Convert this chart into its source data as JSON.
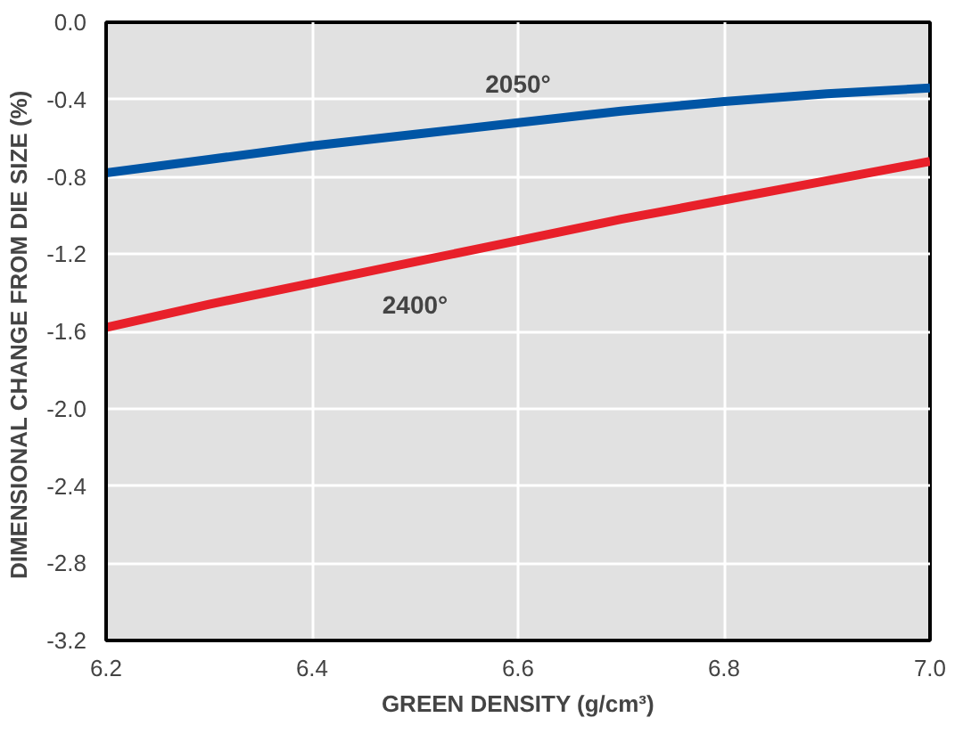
{
  "chart_data": {
    "type": "line",
    "xlabel": "GREEN DENSITY (g/cm³)",
    "ylabel": "DIMENSIONAL CHANGE FROM DIE SIZE  (%)",
    "x": [
      6.2,
      6.3,
      6.4,
      6.5,
      6.6,
      6.7,
      6.8,
      6.9,
      7.0
    ],
    "series": [
      {
        "name": "2050°",
        "color": "#0055a5",
        "values": [
          -0.78,
          -0.71,
          -0.64,
          -0.58,
          -0.52,
          -0.46,
          -0.41,
          -0.37,
          -0.34
        ]
      },
      {
        "name": "2400°",
        "color": "#e8202a",
        "values": [
          -1.58,
          -1.46,
          -1.35,
          -1.24,
          -1.13,
          -1.02,
          -0.92,
          -0.82,
          -0.72
        ]
      }
    ],
    "xlim": [
      6.2,
      7.0
    ],
    "ylim": [
      -3.2,
      0
    ],
    "xticks": [
      6.2,
      6.4,
      6.6,
      6.8,
      {
        "value": 7.0,
        "label": "7.0"
      }
    ],
    "yticks": [
      {
        "value": 0,
        "label": "0.0"
      },
      -0.4,
      -0.8,
      -1.2,
      -1.6,
      {
        "value": -2,
        "label": "-2.0"
      },
      -2.4,
      -2.8,
      -3.2
    ],
    "grid": true,
    "legend": false,
    "marker": "none",
    "line_style": "solid"
  }
}
